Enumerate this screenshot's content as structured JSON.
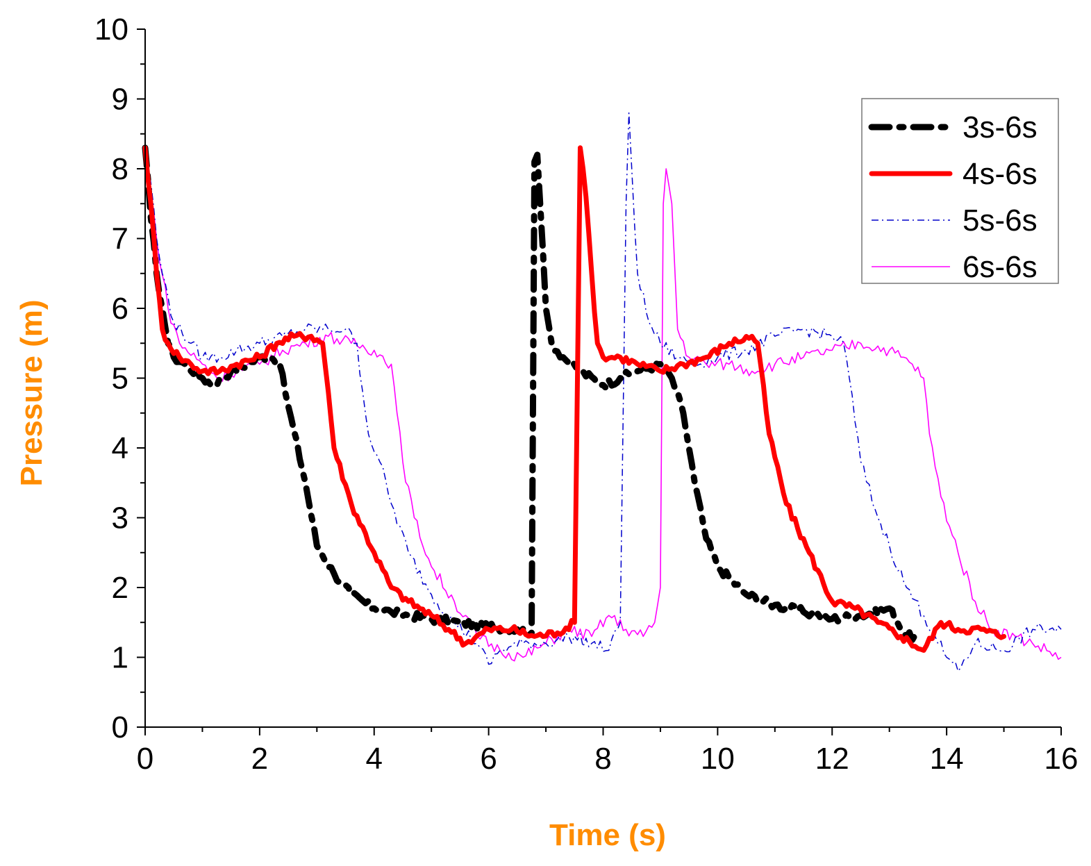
{
  "chart_data": {
    "type": "line",
    "title": "",
    "xlabel": "Time (s)",
    "ylabel": "Pressure (m)",
    "xlim": [
      0,
      16
    ],
    "ylim": [
      0,
      10
    ],
    "xticks": [
      "0",
      "2",
      "4",
      "6",
      "8",
      "10",
      "12",
      "14",
      "16"
    ],
    "yticks": [
      "0",
      "1",
      "2",
      "3",
      "4",
      "5",
      "6",
      "7",
      "8",
      "9",
      "10"
    ],
    "grid": false,
    "legend_position": "top-right",
    "axis_title_color": "#ff8c00",
    "series": [
      {
        "name": "3s-6s",
        "color": "#000000",
        "style": "dash-dot-thick",
        "x": [
          0,
          0.1,
          0.2,
          0.3,
          0.4,
          0.5,
          0.7,
          1.0,
          1.2,
          1.5,
          1.8,
          2.0,
          2.2,
          2.35,
          2.5,
          2.8,
          3.0,
          3.3,
          3.6,
          4.0,
          4.3,
          4.6,
          5.0,
          5.5,
          6.0,
          6.5,
          6.75,
          6.8,
          6.85,
          6.9,
          7.0,
          7.1,
          7.3,
          7.6,
          8.0,
          8.3,
          8.6,
          9.0,
          9.2,
          9.4,
          9.6,
          9.8,
          10.0,
          10.5,
          11.0,
          11.5,
          12.0,
          12.5,
          13.0,
          13.3,
          13.5
        ],
        "y": [
          8.3,
          7.3,
          6.5,
          6.0,
          5.5,
          5.3,
          5.2,
          5.0,
          4.9,
          5.1,
          5.2,
          5.3,
          5.3,
          5.2,
          4.6,
          3.5,
          2.6,
          2.2,
          1.9,
          1.7,
          1.65,
          1.6,
          1.55,
          1.5,
          1.45,
          1.4,
          1.35,
          8.1,
          8.2,
          7.5,
          6.0,
          5.5,
          5.3,
          5.1,
          4.9,
          5.0,
          5.1,
          5.2,
          5.0,
          4.5,
          3.5,
          2.7,
          2.3,
          1.9,
          1.75,
          1.65,
          1.55,
          1.6,
          1.7,
          1.3,
          1.3
        ]
      },
      {
        "name": "4s-6s",
        "color": "#ff0000",
        "style": "solid-thick",
        "x": [
          0,
          0.1,
          0.2,
          0.3,
          0.4,
          0.6,
          0.8,
          1.0,
          1.3,
          1.6,
          2.0,
          2.3,
          2.6,
          2.9,
          3.1,
          3.2,
          3.3,
          3.6,
          4.0,
          4.3,
          4.6,
          5.0,
          5.3,
          5.6,
          6.0,
          6.4,
          6.8,
          7.2,
          7.5,
          7.6,
          7.65,
          7.7,
          7.8,
          7.9,
          8.0,
          8.3,
          8.6,
          9.0,
          9.4,
          9.8,
          10.2,
          10.6,
          10.7,
          10.9,
          11.2,
          11.6,
          12.0,
          12.4,
          12.8,
          13.2,
          13.6,
          13.9,
          14.2,
          14.6,
          15.0
        ],
        "y": [
          8.3,
          7.5,
          6.5,
          5.7,
          5.5,
          5.3,
          5.2,
          5.1,
          5.1,
          5.2,
          5.3,
          5.5,
          5.6,
          5.6,
          5.5,
          4.8,
          4.0,
          3.2,
          2.5,
          2.0,
          1.8,
          1.6,
          1.4,
          1.2,
          1.4,
          1.4,
          1.3,
          1.35,
          1.5,
          8.3,
          8.0,
          7.6,
          6.5,
          5.5,
          5.3,
          5.3,
          5.2,
          5.1,
          5.2,
          5.3,
          5.5,
          5.6,
          5.5,
          4.2,
          3.2,
          2.5,
          1.8,
          1.7,
          1.5,
          1.3,
          1.1,
          1.5,
          1.4,
          1.4,
          1.3
        ]
      },
      {
        "name": "5s-6s",
        "color": "#0000cc",
        "style": "dash-dot-thin",
        "x": [
          0,
          0.1,
          0.2,
          0.3,
          0.5,
          0.8,
          1.0,
          1.3,
          1.6,
          2.0,
          2.4,
          2.8,
          3.2,
          3.5,
          3.7,
          3.8,
          3.9,
          4.1,
          4.3,
          4.6,
          5.0,
          5.4,
          5.8,
          6.0,
          6.2,
          6.6,
          7.0,
          7.4,
          7.8,
          8.1,
          8.3,
          8.4,
          8.45,
          8.5,
          8.6,
          8.8,
          9.0,
          9.3,
          9.6,
          10.0,
          10.5,
          11.0,
          11.5,
          12.0,
          12.2,
          12.3,
          12.5,
          12.8,
          13.0,
          13.3,
          13.6,
          13.8,
          14.0,
          14.2,
          14.5,
          15.0,
          15.5,
          16.0
        ],
        "y": [
          8.3,
          7.8,
          7.0,
          6.5,
          5.8,
          5.5,
          5.3,
          5.3,
          5.4,
          5.5,
          5.6,
          5.7,
          5.7,
          5.7,
          5.5,
          4.8,
          4.2,
          3.8,
          3.2,
          2.5,
          1.9,
          1.5,
          1.2,
          0.9,
          1.1,
          1.2,
          1.2,
          1.3,
          1.2,
          1.1,
          1.5,
          7.5,
          8.8,
          8.0,
          6.5,
          5.8,
          5.5,
          5.3,
          5.2,
          5.3,
          5.4,
          5.6,
          5.7,
          5.6,
          5.5,
          5.0,
          3.8,
          3.0,
          2.6,
          2.0,
          1.6,
          1.3,
          1.0,
          0.8,
          1.2,
          1.1,
          1.4,
          1.4
        ]
      },
      {
        "name": "6s-6s",
        "color": "#ff00ff",
        "style": "solid-thin",
        "x": [
          0,
          0.1,
          0.2,
          0.4,
          0.6,
          1.0,
          1.3,
          1.6,
          2.0,
          2.4,
          2.8,
          3.2,
          3.6,
          4.0,
          4.3,
          4.4,
          4.5,
          4.7,
          5.0,
          5.4,
          5.8,
          6.2,
          6.6,
          7.0,
          7.4,
          7.8,
          8.1,
          8.4,
          8.7,
          8.9,
          9.0,
          9.05,
          9.1,
          9.2,
          9.3,
          9.5,
          9.8,
          10.2,
          10.6,
          11.0,
          11.5,
          12.0,
          12.5,
          13.0,
          13.4,
          13.6,
          13.7,
          13.9,
          14.2,
          14.5,
          14.8,
          15.2,
          15.5,
          16.0
        ],
        "y": [
          8.3,
          7.7,
          7.0,
          6.0,
          5.5,
          5.2,
          5.0,
          5.1,
          5.2,
          5.4,
          5.5,
          5.6,
          5.5,
          5.4,
          5.2,
          4.5,
          3.8,
          3.0,
          2.3,
          1.8,
          1.3,
          1.1,
          1.0,
          1.2,
          1.4,
          1.3,
          1.6,
          1.4,
          1.3,
          1.5,
          2.0,
          7.5,
          8.0,
          7.5,
          5.7,
          5.3,
          5.2,
          5.2,
          5.1,
          5.2,
          5.3,
          5.4,
          5.5,
          5.4,
          5.2,
          5.0,
          4.2,
          3.3,
          2.5,
          1.8,
          1.4,
          1.3,
          1.2,
          1.0
        ]
      }
    ]
  }
}
